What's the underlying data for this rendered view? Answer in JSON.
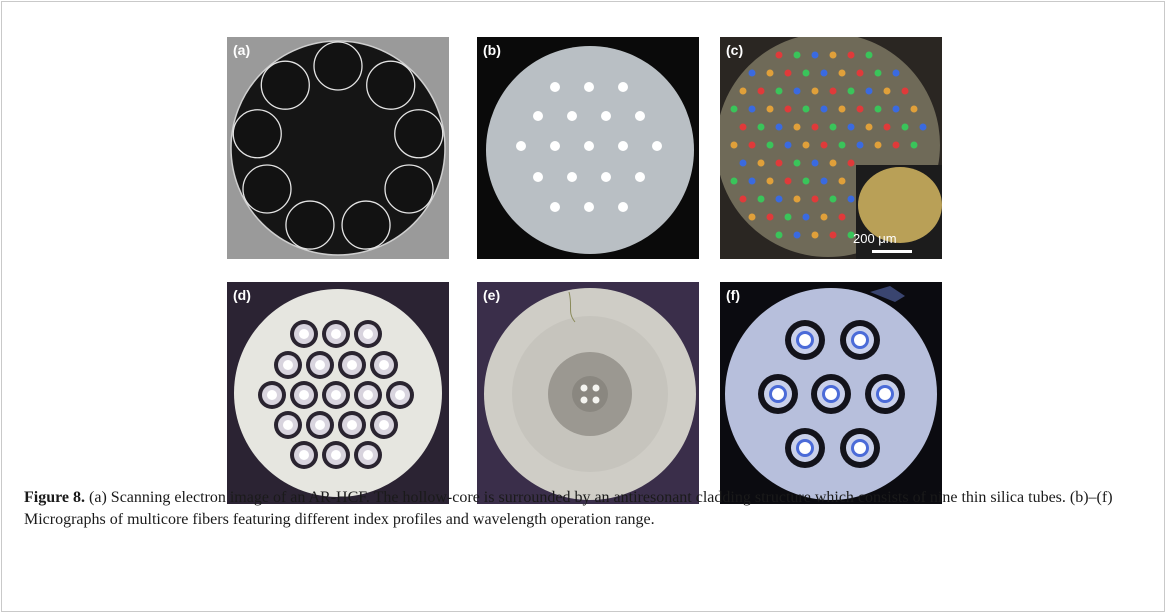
{
  "figure": {
    "panels": [
      {
        "id": "a",
        "label": "(a)"
      },
      {
        "id": "b",
        "label": "(b)"
      },
      {
        "id": "c",
        "label": "(c)",
        "inset_scalebar": "200 μm"
      },
      {
        "id": "d",
        "label": "(d)"
      },
      {
        "id": "e",
        "label": "(e)"
      },
      {
        "id": "f",
        "label": "(f)"
      }
    ],
    "caption": {
      "label": "Figure 8.",
      "text": " (a) Scanning electron image of an AR-HCF. The hollow-core is surrounded by an antiresonant cladding structure which consists of nine thin silica tubes. (b)–(f) Micrographs of multicore fibers featuring different index profiles and wavelength operation range."
    }
  }
}
